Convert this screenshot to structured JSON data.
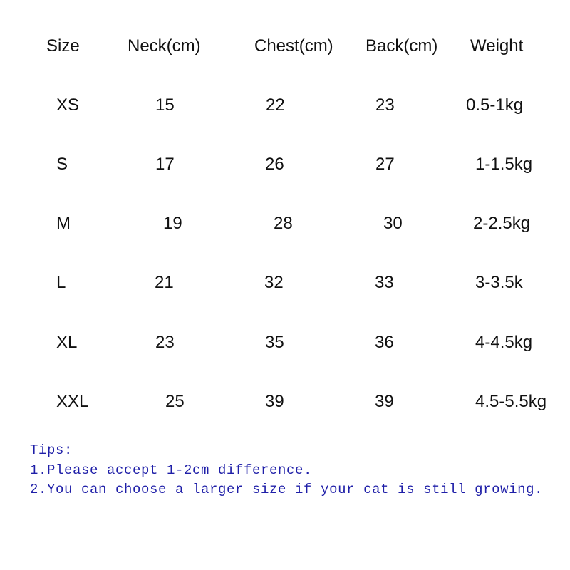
{
  "table": {
    "headers": [
      "Size",
      "Neck(cm)",
      "Chest(cm)",
      "Back(cm)",
      "Weight"
    ],
    "rows": [
      [
        "XS",
        "15",
        "22",
        "23",
        "0.5-1kg"
      ],
      [
        "S",
        "17",
        "26",
        "27",
        "1-1.5kg"
      ],
      [
        "M",
        "19",
        "28",
        "30",
        "2-2.5kg"
      ],
      [
        "L",
        "21",
        "32",
        "33",
        "3-3.5k"
      ],
      [
        "XL",
        "23",
        "35",
        "36",
        "4-4.5kg"
      ],
      [
        "XXL",
        "25",
        "39",
        "39",
        "4.5-5.5kg"
      ]
    ]
  },
  "tips": {
    "title": "Tips:",
    "items": [
      "1.Please accept 1-2cm difference.",
      "2.You can choose a larger size if your cat is still growing."
    ]
  },
  "colors": {
    "text": "#111111",
    "tips": "#1f1fa8"
  }
}
